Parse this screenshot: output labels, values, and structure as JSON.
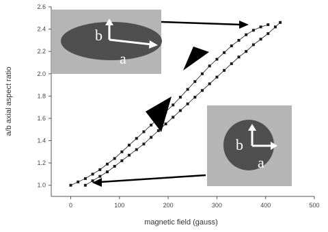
{
  "chart_data": {
    "type": "scatter",
    "title": "",
    "xlabel": "magnetic field (gauss)",
    "ylabel": "a/b axial aspect ratio",
    "xlim": [
      -40,
      500
    ],
    "ylim": [
      0.9,
      2.6
    ],
    "xticks": [
      "0",
      "100",
      "200",
      "300",
      "400",
      "500"
    ],
    "yticks": [
      "1.0",
      "1.2",
      "1.4",
      "1.6",
      "1.8",
      "2.0",
      "2.2",
      "2.4",
      "2.6"
    ],
    "grid": false,
    "legend": "none",
    "series": [
      {
        "values_x": [
          0,
          15,
          30,
          45,
          60,
          75,
          90,
          105,
          120,
          135,
          150,
          165,
          180,
          195,
          210,
          225,
          240,
          255,
          270,
          285,
          300,
          315,
          330,
          345,
          360,
          375,
          390,
          405
        ],
        "values_y": [
          1.0,
          1.03,
          1.06,
          1.1,
          1.14,
          1.19,
          1.24,
          1.3,
          1.36,
          1.42,
          1.48,
          1.54,
          1.6,
          1.66,
          1.72,
          1.79,
          1.86,
          1.93,
          2.0,
          2.07,
          2.13,
          2.19,
          2.25,
          2.3,
          2.35,
          2.39,
          2.42,
          2.44
        ]
      },
      {
        "values_x": [
          30,
          45,
          60,
          75,
          90,
          105,
          120,
          135,
          150,
          165,
          180,
          195,
          210,
          225,
          240,
          255,
          270,
          285,
          300,
          315,
          330,
          345,
          360,
          375,
          390,
          405,
          420,
          430
        ],
        "values_y": [
          1.0,
          1.04,
          1.08,
          1.12,
          1.17,
          1.22,
          1.27,
          1.32,
          1.37,
          1.43,
          1.49,
          1.55,
          1.61,
          1.67,
          1.73,
          1.79,
          1.85,
          1.91,
          1.97,
          2.03,
          2.09,
          2.15,
          2.2,
          2.26,
          2.31,
          2.36,
          2.42,
          2.46
        ]
      }
    ],
    "insets": [
      {
        "shape": "ellipse",
        "label_a": "a",
        "label_b": "b"
      },
      {
        "shape": "circle",
        "label_a": "a",
        "label_b": "b"
      }
    ],
    "annotations": [
      "arrow from elongated-ellipse inset to high-field end",
      "arrow from circle inset to zero-field start",
      "arrowhead indicating increasing field",
      "arrowhead indicating decreasing field"
    ],
    "colors": {
      "markers": "#1a1a1a",
      "inset_background": "#b5b5b5",
      "inset_shape": "#4f4f4f",
      "arrow": "#000000"
    }
  }
}
